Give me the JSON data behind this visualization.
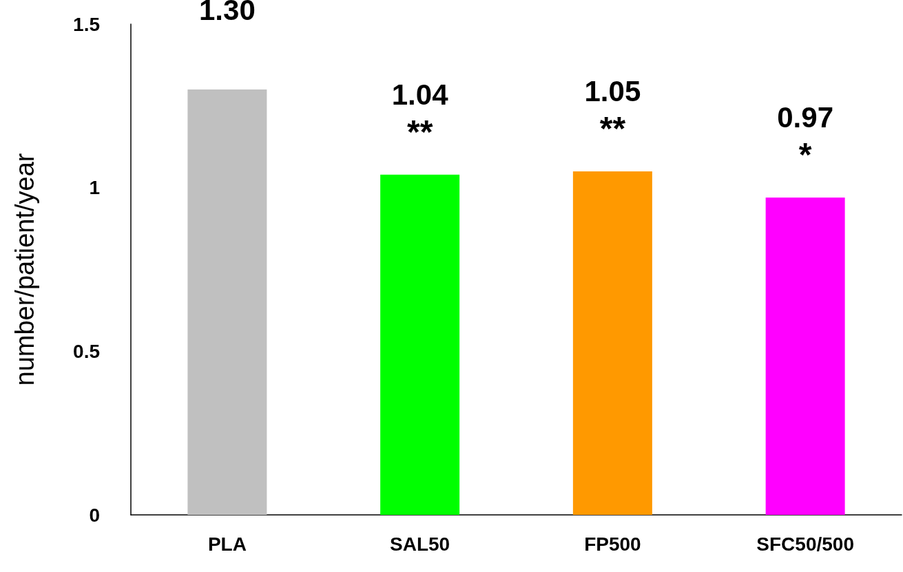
{
  "chart_data": {
    "type": "bar",
    "ylabel": "number/patient/year",
    "categories": [
      "PLA",
      "SAL50",
      "FP500",
      "SFC50/500"
    ],
    "values": [
      1.3,
      1.04,
      1.05,
      0.97
    ],
    "colors": [
      "#c0c0c0",
      "#00ff00",
      "#ff9900",
      "#ff00ff"
    ],
    "value_labels": [
      "1.30",
      "1.04",
      "1.05",
      "0.97"
    ],
    "ylim": [
      0,
      1.5
    ],
    "yticks": [
      0,
      0.5,
      1,
      1.5
    ],
    "grid": false,
    "annotations": [
      {
        "text": "**",
        "x": "SAL50",
        "y": 1.04
      },
      {
        "text": "**",
        "x": "FP500",
        "y": 1.05
      },
      {
        "text": "*",
        "x": "SFC50/500",
        "y": 0.97
      }
    ]
  }
}
